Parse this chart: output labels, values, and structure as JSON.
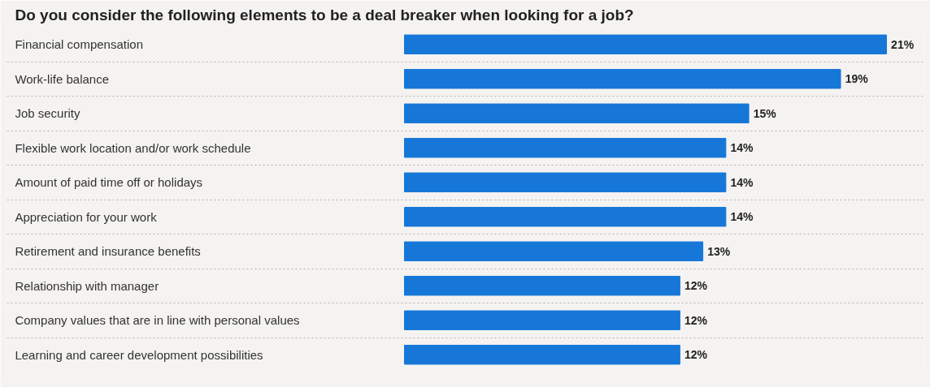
{
  "chart_data": {
    "type": "bar",
    "orientation": "horizontal",
    "title": "Do you consider the following elements to be a deal breaker when looking for a job?",
    "categories": [
      "Financial compensation",
      "Work-life balance",
      "Job security",
      "Flexible work location and/or work schedule",
      "Amount of paid time off or holidays",
      "Appreciation for your work",
      "Retirement and insurance benefits",
      "Relationship with manager",
      "Company values that are in line with personal values",
      "Learning and career development possibilities"
    ],
    "values": [
      21,
      19,
      15,
      14,
      14,
      14,
      13,
      12,
      12,
      12
    ],
    "value_labels": [
      "21%",
      "19%",
      "15%",
      "14%",
      "14%",
      "14%",
      "13%",
      "12%",
      "12%",
      "12%"
    ],
    "color": "#1677d9",
    "grid": "y"
  }
}
